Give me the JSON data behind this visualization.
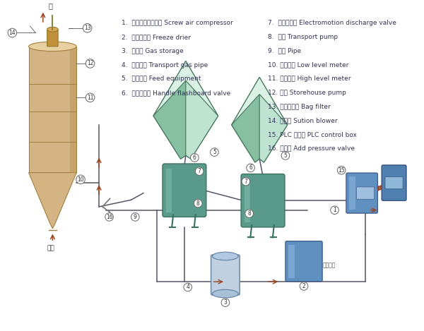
{
  "bg_color": "#ffffff",
  "legend_left": [
    "1.  螺杆式空气压缩机 Screw air compressor",
    "2.  冷冻干燥机 Freeze drier",
    "3.  储气罐 Gas storage",
    "4.  输气管道 Transport gas pipe",
    "5.  排料装置 Feed equipment",
    "6.  手动插板阀 Handle flashboard valve"
  ],
  "legend_right": [
    "7.  电动卸料阀 Electromotion discharge valve",
    "8.  仓泵 Transport pump",
    "9.  管道 Pipe",
    "10. 低料位计 Low level meter",
    "11. 高料位计 High level meter",
    "12. 料仓 Storehouse pump",
    "13. 袋式过滤器 Bag filter",
    "14. 引风机 Sution blower",
    "15. PLC 控制笱 PLC control box",
    "16. 增压器 Add pressure valve"
  ],
  "silo_color": "#d4b483",
  "silo_dark": "#a08040",
  "silo_light": "#e8d0a0",
  "funnel_face": "#a8d8c0",
  "funnel_light": "#c8eedd",
  "funnel_dark": "#5a8a70",
  "tank_face": "#5a9a8a",
  "tank_light": "#8ac8b8",
  "tank_dark": "#3a7060",
  "box_face": "#6090c0",
  "box_light": "#90b8e0",
  "box_dark": "#3a6090",
  "line_col": "#555566",
  "arrow_col": "#994422",
  "num_bg": "#ffffff",
  "num_fg": "#333333",
  "text_col": "#333355"
}
